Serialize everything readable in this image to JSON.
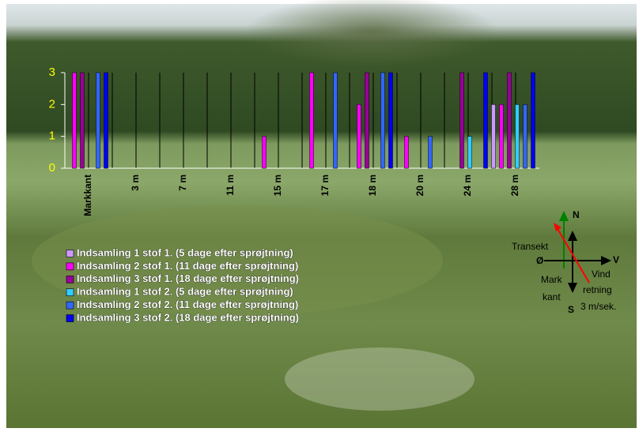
{
  "chart_data": {
    "type": "bar",
    "categories": [
      "Markkant",
      "3 m",
      "7 m",
      "11 m",
      "15 m",
      "17 m",
      "18 m",
      "20 m",
      "24 m",
      "28 m"
    ],
    "series": [
      {
        "name": "Indsamling 1 stof 1. (5 dage efter sprøjtning)",
        "color": "#cc99ff",
        "values": [
          0,
          0,
          0,
          0,
          0,
          0,
          0,
          0,
          0,
          2
        ]
      },
      {
        "name": "Indsamling 2 stof 1. (11 dage efter sprøjtning)",
        "color": "#ff00ff",
        "values": [
          3,
          0,
          0,
          0,
          1,
          3,
          2,
          1,
          0,
          2
        ]
      },
      {
        "name": "Indsamling 3 stof 1. (18 dage efter sprøjtning)",
        "color": "#990099",
        "values": [
          3,
          0,
          0,
          0,
          0,
          0,
          3,
          0,
          3,
          3
        ]
      },
      {
        "name": "Indsamling 1 stof 2. (5 dage efter sprøjtning)",
        "color": "#33ccff",
        "values": [
          0,
          0,
          0,
          0,
          0,
          0,
          0,
          0,
          1,
          2
        ]
      },
      {
        "name": "Indsamling 2 stof 2. (11 dage efter sprøjtning)",
        "color": "#3366ff",
        "values": [
          3,
          0,
          0,
          0,
          0,
          3,
          3,
          1,
          0,
          2
        ]
      },
      {
        "name": "Indsamling 3 stof 2. (18 dage efter sprøjtning)",
        "color": "#0000ff",
        "values": [
          3,
          0,
          0,
          0,
          0,
          0,
          3,
          0,
          3,
          3
        ]
      }
    ],
    "ylim": [
      0,
      3
    ],
    "yticks": [
      0,
      1,
      2,
      3
    ],
    "tick_color": "#ffff00",
    "compass": {
      "north": "N",
      "south": "S",
      "east": "V",
      "west": "Ø",
      "transect": "Transekt",
      "field_edge": [
        "Mark",
        "kant"
      ],
      "wind": [
        "Vind",
        "retning",
        "3 m/sek."
      ]
    }
  }
}
